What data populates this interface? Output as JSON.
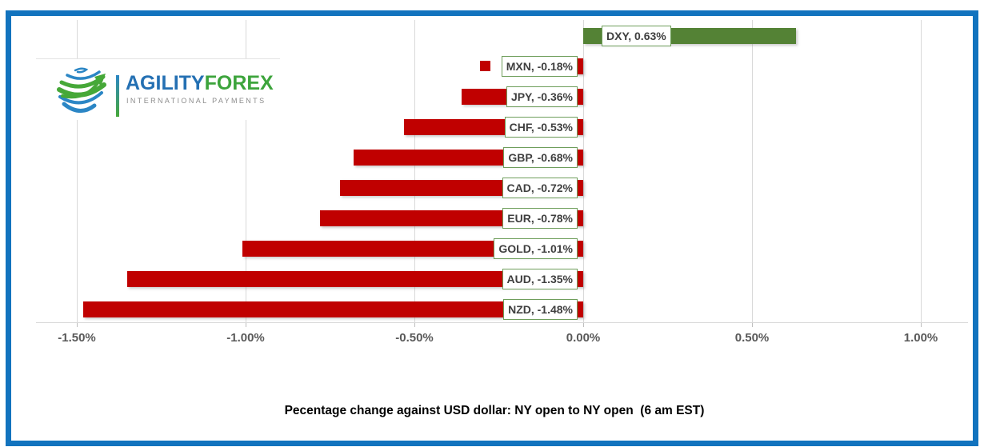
{
  "colors": {
    "frame_border": "#1273BE",
    "positive_bar": "#548235",
    "negative_bar": "#C00000",
    "gridline": "#D9D9D9",
    "label_box_border": "#6E9E5B",
    "label_text": "#3F3F3F",
    "tick_text": "#595959"
  },
  "logo": {
    "brand_primary": "AGILITY",
    "brand_secondary": "FOREX",
    "tagline": "INTERNATIONAL PAYMENTS",
    "colors": {
      "primary": "#2470B3",
      "secondary": "#3DA43C",
      "tagline": "#8C8C8C",
      "globe_blue": "#2b86c5",
      "globe_green": "#46a838"
    }
  },
  "chart_data": {
    "type": "bar",
    "orientation": "horizontal",
    "categories": [
      "DXY",
      "MXN",
      "JPY",
      "CHF",
      "GBP",
      "CAD",
      "EUR",
      "GOLD",
      "AUD",
      "NZD"
    ],
    "values": [
      0.63,
      -0.18,
      -0.36,
      -0.53,
      -0.68,
      -0.72,
      -0.78,
      -1.01,
      -1.35,
      -1.48
    ],
    "data_labels": [
      "DXY, 0.63%",
      "MXN, -0.18%",
      "JPY, -0.36%",
      "CHF, -0.53%",
      "GBP, -0.68%",
      "CAD, -0.72%",
      "EUR, -0.78%",
      "GOLD, -1.01%",
      "AUD, -1.35%",
      "NZD, -1.48%"
    ],
    "x_ticks": [
      {
        "label": "-1.50%",
        "value": -1.5
      },
      {
        "label": "-1.00%",
        "value": -1.0
      },
      {
        "label": "-0.50%",
        "value": -0.5
      },
      {
        "label": "0.00%",
        "value": 0.0
      },
      {
        "label": "0.50%",
        "value": 0.5
      },
      {
        "label": "1.00%",
        "value": 1.0
      }
    ],
    "xlim": [
      -1.65,
      1.15
    ],
    "gridlines": true,
    "legend": false,
    "title": "Pecentage change against USD dollar: NY open to NY open  (6 am EST)"
  }
}
